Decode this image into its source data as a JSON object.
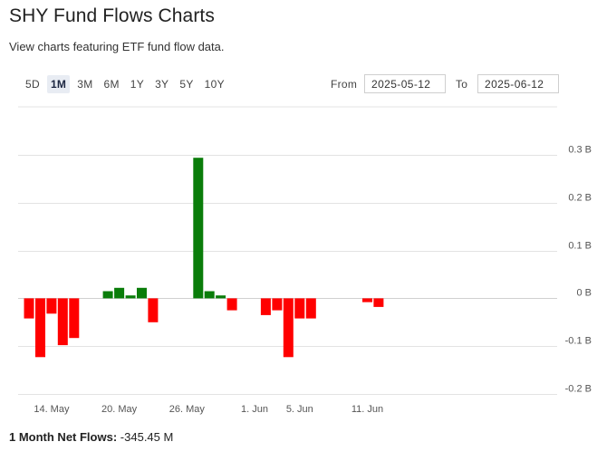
{
  "page": {
    "title": "SHY Fund Flows Charts",
    "subtitle": "View charts featuring ETF fund flow data."
  },
  "ranges": [
    "5D",
    "1M",
    "3M",
    "6M",
    "1Y",
    "3Y",
    "5Y",
    "10Y"
  ],
  "active_range": "1M",
  "date_range": {
    "from_label": "From",
    "from_value": "2025-05-12",
    "to_label": "To",
    "to_value": "2025-06-12"
  },
  "footer": {
    "label": "1 Month Net Flows:",
    "value": "-345.45 M"
  },
  "colors": {
    "positive": "#0a7d0a",
    "negative": "#ff0000",
    "grid": "#e3e3e3"
  },
  "chart_data": {
    "type": "bar",
    "ylabel_unit": "B",
    "ylim": [
      -0.2,
      0.3
    ],
    "yticks": [
      0.3,
      0.2,
      0.1,
      0,
      -0.1,
      -0.2
    ],
    "ytick_labels": [
      "0.3 B",
      "0.2 B",
      "0.1 B",
      "0 B",
      "-0.1 B",
      "-0.2 B"
    ],
    "xtick_labels": [
      "14. May",
      "20. May",
      "26. May",
      "1. Jun",
      "5. Jun",
      "11. Jun"
    ],
    "series": [
      {
        "values": [
          {
            "date": "2025-05-12",
            "value": -0.042
          },
          {
            "date": "2025-05-13",
            "value": -0.123
          },
          {
            "date": "2025-05-14",
            "value": -0.032
          },
          {
            "date": "2025-05-15",
            "value": -0.098
          },
          {
            "date": "2025-05-16",
            "value": -0.083
          },
          {
            "date": "2025-05-19",
            "value": 0.015
          },
          {
            "date": "2025-05-20",
            "value": 0.022
          },
          {
            "date": "2025-05-21",
            "value": 0.006
          },
          {
            "date": "2025-05-22",
            "value": 0.022
          },
          {
            "date": "2025-05-23",
            "value": -0.05
          },
          {
            "date": "2025-05-27",
            "value": 0.294
          },
          {
            "date": "2025-05-28",
            "value": 0.015
          },
          {
            "date": "2025-05-29",
            "value": 0.006
          },
          {
            "date": "2025-05-30",
            "value": -0.025
          },
          {
            "date": "2025-06-02",
            "value": -0.035
          },
          {
            "date": "2025-06-03",
            "value": -0.025
          },
          {
            "date": "2025-06-04",
            "value": -0.123
          },
          {
            "date": "2025-06-05",
            "value": -0.042
          },
          {
            "date": "2025-06-06",
            "value": -0.042
          },
          {
            "date": "2025-06-11",
            "value": -0.008
          },
          {
            "date": "2025-06-12",
            "value": -0.018
          }
        ]
      }
    ],
    "grid": true
  }
}
